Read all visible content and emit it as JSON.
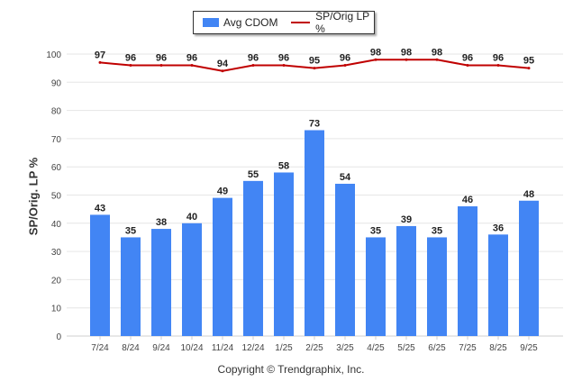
{
  "chart_data": {
    "type": "bar",
    "categories": [
      "7/24",
      "8/24",
      "9/24",
      "10/24",
      "11/24",
      "12/24",
      "1/25",
      "2/25",
      "3/25",
      "4/25",
      "5/25",
      "6/25",
      "7/25",
      "8/25",
      "9/25"
    ],
    "series": [
      {
        "name": "Avg CDOM",
        "type": "bar",
        "color": "#4285f4",
        "values": [
          43,
          35,
          38,
          40,
          49,
          55,
          58,
          73,
          54,
          35,
          39,
          35,
          46,
          36,
          48
        ]
      },
      {
        "name": "SP/Orig LP %",
        "type": "line",
        "color": "#c00000",
        "values": [
          97,
          96,
          96,
          96,
          94,
          96,
          96,
          95,
          96,
          98,
          98,
          98,
          96,
          96,
          95
        ]
      }
    ],
    "ylabel": "SP/Orig. LP %",
    "xlabel": "",
    "ylim": [
      0,
      100
    ],
    "yticks": [
      0,
      10,
      20,
      30,
      40,
      50,
      60,
      70,
      80,
      90,
      100
    ],
    "grid": true,
    "legend": "top-center",
    "data_labels": true
  },
  "footer": {
    "copyright": "Copyright © Trendgraphix, Inc."
  }
}
